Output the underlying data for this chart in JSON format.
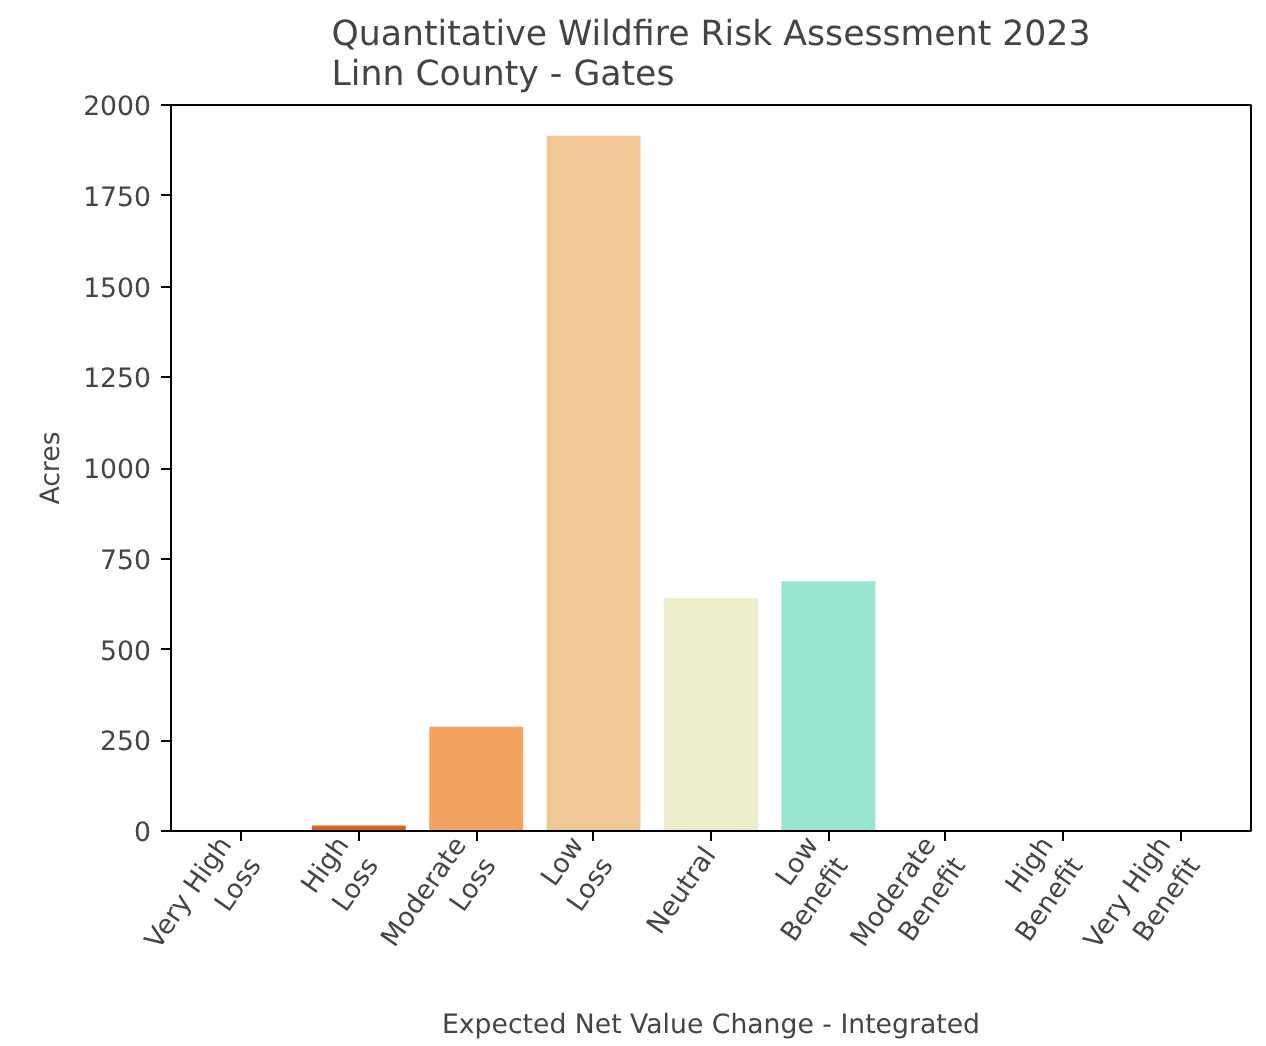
{
  "chart_data": {
    "type": "bar",
    "title": "Quantitative Wildfire Risk Assessment 2023\nLinn County - Gates",
    "xlabel": "Expected Net Value Change - Integrated",
    "ylabel": "Acres",
    "categories": [
      "Very High Loss",
      "High Loss",
      "Moderate Loss",
      "Low Loss",
      "Neutral",
      "Low Benefit",
      "Moderate Benefit",
      "High Benefit",
      "Very High Benefit"
    ],
    "values": [
      0,
      15,
      287,
      1915,
      642,
      688,
      0,
      0,
      0
    ],
    "colors": [
      "#a0301c",
      "#d8642a",
      "#f4a460",
      "#f0c896",
      "#eeeecc",
      "#98e6d2",
      "#60c0a8",
      "#2f9a88",
      "#16706a"
    ],
    "ylim": [
      0,
      2000
    ],
    "yticks": [
      0,
      250,
      500,
      750,
      1000,
      1250,
      1500,
      1750,
      2000
    ],
    "grid": false
  }
}
